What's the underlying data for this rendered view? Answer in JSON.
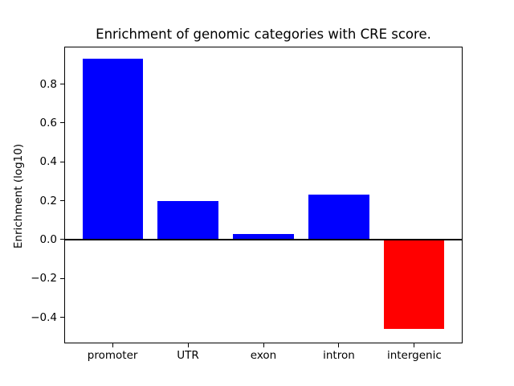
{
  "chart_data": {
    "type": "bar",
    "title": "Enrichment of genomic categories with CRE score.",
    "ylabel": "Enrichment (log10)",
    "xlabel": "",
    "categories": [
      "promoter",
      "UTR",
      "exon",
      "intron",
      "intergenic"
    ],
    "values": [
      0.93,
      0.2,
      0.03,
      0.23,
      -0.46
    ],
    "bar_colors": [
      "#0000ff",
      "#0000ff",
      "#0000ff",
      "#0000ff",
      "#ff0000"
    ],
    "positive_color": "#0000ff",
    "negative_color": "#ff0000",
    "bar_width": 0.8,
    "yticks": [
      -0.4,
      -0.2,
      0.0,
      0.2,
      0.4,
      0.6,
      0.8
    ],
    "ylim": [
      -0.534,
      0.993
    ],
    "xlim": [
      -0.64,
      4.64
    ],
    "grid": false,
    "legend": false,
    "zero_line": {
      "y": 0.0,
      "color": "#000000"
    },
    "axis_color": "#000000",
    "background_color": "#ffffff"
  }
}
